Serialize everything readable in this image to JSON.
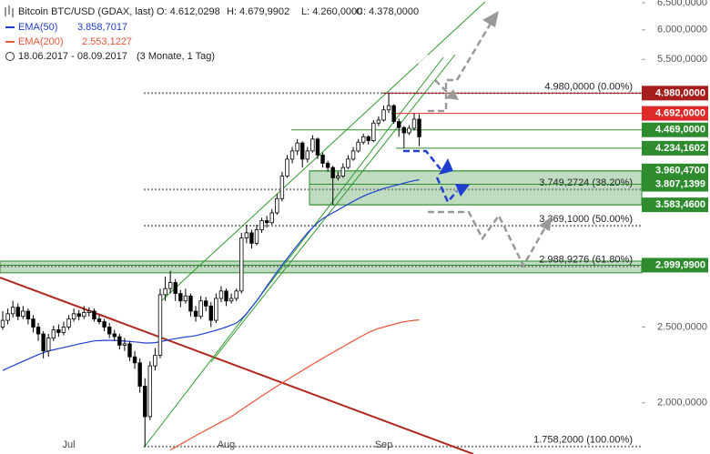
{
  "chart_data": {
    "type": "candlestick",
    "title": "Bitcoin BTC/USD (GDAX, last)",
    "ohlc_labels": [
      "O: 4.612,0298",
      "H: 4.679,9902",
      "L: 4.260,0000",
      "C: 4.378,0000"
    ],
    "date_range": "18.06.2017 - 08.09.2017",
    "period": "(3 Monate, 1 Tag)",
    "categories": [
      null,
      null,
      null,
      null,
      null,
      null,
      null,
      null,
      null,
      null,
      null,
      null,
      null,
      "Jul",
      null,
      null,
      null,
      null,
      null,
      null,
      null,
      null,
      null,
      null,
      null,
      null,
      null,
      null,
      null,
      null,
      null,
      null,
      null,
      null,
      null,
      null,
      null,
      null,
      null,
      null,
      null,
      null,
      null,
      null,
      "Aug",
      null,
      null,
      null,
      null,
      null,
      null,
      null,
      null,
      null,
      null,
      null,
      null,
      null,
      null,
      null,
      null,
      null,
      null,
      null,
      null,
      null,
      null,
      null,
      null,
      null,
      null,
      null,
      null,
      null,
      null,
      "Sep",
      null,
      null,
      null,
      null,
      null,
      null,
      null
    ],
    "candles": [
      [
        2500,
        2620,
        2480,
        2550
      ],
      [
        2550,
        2640,
        2520,
        2600
      ],
      [
        2600,
        2700,
        2570,
        2650
      ],
      [
        2650,
        2680,
        2550,
        2580
      ],
      [
        2580,
        2660,
        2560,
        2620
      ],
      [
        2620,
        2640,
        2520,
        2560
      ],
      [
        2560,
        2590,
        2460,
        2500
      ],
      [
        2500,
        2530,
        2400,
        2450
      ],
      [
        2450,
        2470,
        2280,
        2330
      ],
      [
        2330,
        2450,
        2290,
        2420
      ],
      [
        2420,
        2510,
        2400,
        2480
      ],
      [
        2480,
        2520,
        2430,
        2460
      ],
      [
        2460,
        2540,
        2440,
        2500
      ],
      [
        2500,
        2590,
        2480,
        2560
      ],
      [
        2560,
        2640,
        2540,
        2600
      ],
      [
        2600,
        2630,
        2550,
        2580
      ],
      [
        2580,
        2660,
        2560,
        2610
      ],
      [
        2610,
        2650,
        2580,
        2620
      ],
      [
        2620,
        2640,
        2540,
        2560
      ],
      [
        2560,
        2590,
        2520,
        2540
      ],
      [
        2540,
        2560,
        2470,
        2500
      ],
      [
        2500,
        2530,
        2420,
        2450
      ],
      [
        2450,
        2480,
        2400,
        2430
      ],
      [
        2430,
        2450,
        2340,
        2370
      ],
      [
        2370,
        2420,
        2330,
        2380
      ],
      [
        2380,
        2400,
        2260,
        2290
      ],
      [
        2290,
        2330,
        2210,
        2250
      ],
      [
        2250,
        2280,
        2060,
        2100
      ],
      [
        2100,
        2150,
        1758.2,
        1920
      ],
      [
        1920,
        2260,
        1900,
        2230
      ],
      [
        2230,
        2350,
        2200,
        2300
      ],
      [
        2300,
        2800,
        2280,
        2750
      ],
      [
        2750,
        2900,
        2700,
        2800
      ],
      [
        2800,
        2950,
        2760,
        2850
      ],
      [
        2850,
        2880,
        2700,
        2760
      ],
      [
        2760,
        2790,
        2650,
        2700
      ],
      [
        2700,
        2800,
        2680,
        2740
      ],
      [
        2740,
        2760,
        2580,
        2620
      ],
      [
        2620,
        2660,
        2540,
        2580
      ],
      [
        2580,
        2740,
        2560,
        2700
      ],
      [
        2700,
        2730,
        2620,
        2660
      ],
      [
        2660,
        2690,
        2500,
        2550
      ],
      [
        2550,
        2760,
        2530,
        2720
      ],
      [
        2720,
        2820,
        2690,
        2780
      ],
      [
        2780,
        2800,
        2660,
        2700
      ],
      [
        2700,
        2760,
        2680,
        2720
      ],
      [
        2720,
        2800,
        2700,
        2780
      ],
      [
        2780,
        3300,
        2760,
        3250
      ],
      [
        3250,
        3380,
        3200,
        3300
      ],
      [
        3300,
        3330,
        3150,
        3200
      ],
      [
        3200,
        3380,
        3180,
        3330
      ],
      [
        3330,
        3450,
        3300,
        3420
      ],
      [
        3420,
        3470,
        3350,
        3400
      ],
      [
        3400,
        3540,
        3380,
        3500
      ],
      [
        3500,
        3700,
        3480,
        3650
      ],
      [
        3650,
        3950,
        3620,
        3900
      ],
      [
        3900,
        4150,
        3880,
        4100
      ],
      [
        4100,
        4250,
        4050,
        4200
      ],
      [
        4200,
        4350,
        4150,
        4300
      ],
      [
        4300,
        4320,
        4000,
        4100
      ],
      [
        4100,
        4250,
        4060,
        4200
      ],
      [
        4200,
        4400,
        4180,
        4350
      ],
      [
        4350,
        4370,
        4100,
        4150
      ],
      [
        4150,
        4180,
        4000,
        4050
      ],
      [
        4050,
        4080,
        3950,
        4000
      ],
      [
        4000,
        4020,
        3583.46,
        3880
      ],
      [
        3880,
        3950,
        3850,
        3900
      ],
      [
        3900,
        4050,
        3880,
        4000
      ],
      [
        4000,
        4150,
        3980,
        4100
      ],
      [
        4100,
        4250,
        4080,
        4200
      ],
      [
        4200,
        4350,
        4180,
        4310
      ],
      [
        4310,
        4420,
        4280,
        4380
      ],
      [
        4380,
        4400,
        4280,
        4330
      ],
      [
        4330,
        4600,
        4310,
        4560
      ],
      [
        4560,
        4650,
        4520,
        4600
      ],
      [
        4600,
        4800,
        4580,
        4740
      ],
      [
        4740,
        4980,
        4700,
        4800
      ],
      [
        4800,
        4820,
        4550,
        4580
      ],
      [
        4580,
        4620,
        4380,
        4500
      ],
      [
        4500,
        4520,
        4234.1602,
        4430
      ],
      [
        4430,
        4530,
        4400,
        4490
      ],
      [
        4490,
        4692,
        4460,
        4612.0298
      ],
      [
        4612.0298,
        4679.9902,
        4260,
        4378
      ]
    ],
    "up_color": "#ffffff",
    "down_color": "#000000",
    "series": [
      {
        "name": "EMA(50)",
        "value_label": "3.858,7017",
        "color": "#1f3fd0",
        "values": [
          2200,
          2215,
          2230,
          2245,
          2260,
          2275,
          2290,
          2305,
          2318,
          2330,
          2338,
          2346,
          2354,
          2362,
          2370,
          2378,
          2386,
          2393,
          2400,
          2402,
          2404,
          2404,
          2403,
          2401,
          2399,
          2396,
          2393,
          2390,
          2385,
          2385,
          2388,
          2395,
          2402,
          2410,
          2416,
          2422,
          2428,
          2432,
          2438,
          2446,
          2456,
          2466,
          2476,
          2488,
          2500,
          2515,
          2530,
          2560,
          2600,
          2650,
          2700,
          2760,
          2820,
          2880,
          2940,
          3000,
          3060,
          3120,
          3180,
          3240,
          3300,
          3350,
          3400,
          3440,
          3470,
          3500,
          3530,
          3560,
          3590,
          3620,
          3650,
          3675,
          3700,
          3720,
          3740,
          3760,
          3775,
          3790,
          3805,
          3820,
          3835,
          3848,
          3858.7017
        ]
      },
      {
        "name": "EMA(200)",
        "value_label": "2.553,1227",
        "color": "#e8553a",
        "values": [
          null,
          null,
          null,
          null,
          null,
          null,
          null,
          null,
          null,
          null,
          null,
          null,
          null,
          null,
          null,
          null,
          null,
          null,
          null,
          null,
          null,
          null,
          null,
          null,
          null,
          null,
          null,
          null,
          null,
          null,
          null,
          null,
          null,
          1740,
          1755,
          1770,
          1785,
          1800,
          1815,
          1830,
          1845,
          1860,
          1875,
          1890,
          1905,
          1920,
          1940,
          1960,
          1980,
          2000,
          2020,
          2040,
          2060,
          2080,
          2100,
          2120,
          2140,
          2160,
          2180,
          2200,
          2220,
          2240,
          2260,
          2280,
          2300,
          2320,
          2340,
          2360,
          2380,
          2400,
          2420,
          2440,
          2460,
          2475,
          2490,
          2500,
          2510,
          2520,
          2530,
          2540,
          2545,
          2550,
          2553.1227
        ]
      }
    ],
    "log_scale": true,
    "ylim": [
      1720,
      6552
    ],
    "yticks": [
      {
        "value": 2000,
        "label": "2.000,0000"
      },
      {
        "value": 2500,
        "label": "2.500,0000"
      },
      {
        "value": 5500,
        "label": "5.500,0000"
      },
      {
        "value": 6000,
        "label": "6.000,0000"
      },
      {
        "value": 6500,
        "label": "6.500,0000"
      }
    ],
    "fib_levels": [
      {
        "value": 4980,
        "label": "4.980,0000 (0.00%)"
      },
      {
        "value": 3749.2724,
        "label": "3.749,2724 (38.20%)"
      },
      {
        "value": 3369.1,
        "label": "3.369,1000 (50.00%)"
      },
      {
        "value": 2988.9276,
        "label": "2.988,9276 (61.80%)"
      },
      {
        "value": 1758.2,
        "label": "1.758,2000 (100.00%)"
      }
    ],
    "price_levels": [
      {
        "value": 4980,
        "label": "4.980,0000",
        "color": "#a51d1d"
      },
      {
        "value": 4692,
        "label": "4.692,0000",
        "color": "#e02a2a"
      },
      {
        "value": 4469,
        "label": "4.469,0000",
        "color": "#2e8b2e"
      },
      {
        "value": 4234.1602,
        "label": "4.234,1602",
        "color": "#2e8b2e"
      },
      {
        "value": 3960.47,
        "label": "3.960,4700",
        "color": "#2e8b2e"
      },
      {
        "value": 3807.1399,
        "label": "3.807,1399",
        "color": "#2e8b2e"
      },
      {
        "value": 3583.46,
        "label": "3.583,4600",
        "color": "#2e8b2e"
      },
      {
        "value": 2999.99,
        "label": "2.999,9900",
        "color": "#2e8b2e"
      }
    ],
    "zones": [
      {
        "from": 3583.46,
        "to": 3960.47,
        "color": "#2e8b2e"
      },
      {
        "from": 2933,
        "to": 3036,
        "color": "#2e8b2e"
      }
    ]
  }
}
